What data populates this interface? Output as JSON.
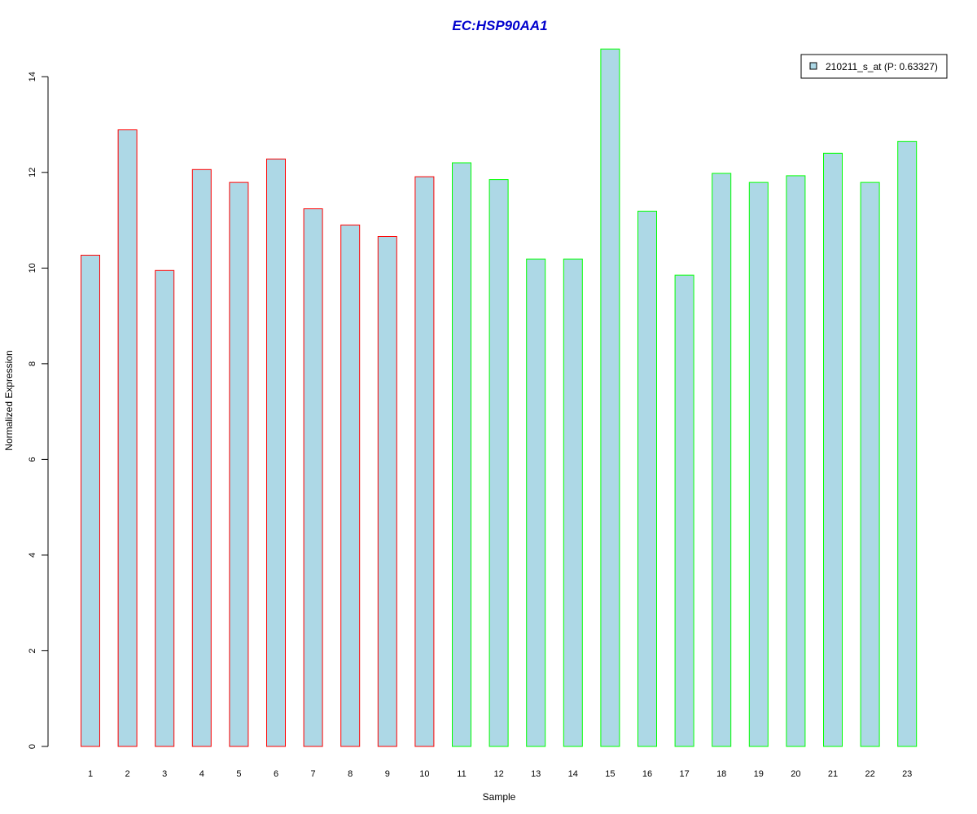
{
  "chart_data": {
    "type": "bar",
    "title": "EC:HSP90AA1",
    "xlabel": "Sample",
    "ylabel": "Normalized Expression",
    "ylim": [
      0,
      14.6
    ],
    "yticks": [
      0,
      2,
      4,
      6,
      8,
      10,
      12,
      14
    ],
    "ytick_labels": [
      "0",
      "2",
      "4",
      "6",
      "8",
      "10",
      "12",
      "14"
    ],
    "categories": [
      "1",
      "2",
      "3",
      "4",
      "5",
      "6",
      "7",
      "8",
      "9",
      "10",
      "11",
      "12",
      "13",
      "14",
      "15",
      "16",
      "17",
      "18",
      "19",
      "20",
      "21",
      "22",
      "23"
    ],
    "values": [
      10.27,
      12.89,
      9.95,
      12.06,
      11.79,
      12.28,
      11.24,
      10.9,
      10.66,
      11.91,
      12.2,
      11.85,
      10.19,
      10.19,
      14.58,
      11.19,
      9.85,
      11.98,
      11.79,
      11.93,
      12.4,
      11.79,
      12.65
    ],
    "groups": [
      "red",
      "red",
      "red",
      "red",
      "red",
      "red",
      "red",
      "red",
      "red",
      "red",
      "green",
      "green",
      "green",
      "green",
      "green",
      "green",
      "green",
      "green",
      "green",
      "green",
      "green",
      "green",
      "green"
    ],
    "series": [
      {
        "name": "210211_s_at (P: 0.63327)"
      }
    ],
    "legend_position": "top-right",
    "grid": false,
    "colors": {
      "bar_fill": "#add8e6",
      "red": "#ff0000",
      "green": "#00ff00",
      "title": "#0000cd",
      "axis": "#000000"
    }
  }
}
